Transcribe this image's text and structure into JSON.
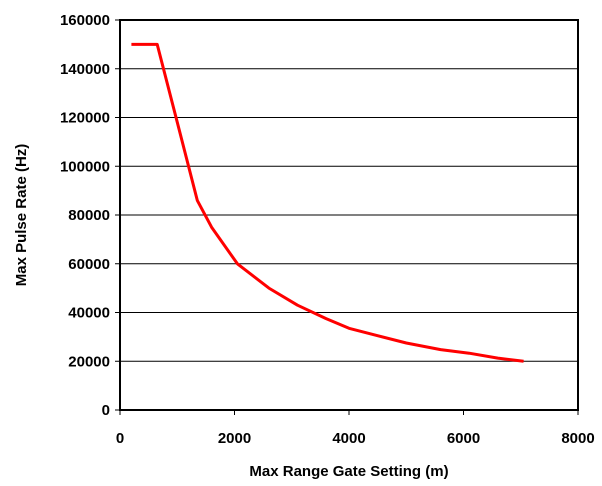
{
  "chart_data": {
    "type": "line",
    "title": "",
    "xlabel": "Max Range Gate Setting (m)",
    "ylabel": "Max Pulse Rate (Hz)",
    "xlim": [
      0,
      8000
    ],
    "ylim": [
      0,
      160000
    ],
    "x_ticks": [
      "0",
      "2000",
      "4000",
      "6000",
      "8000"
    ],
    "y_ticks": [
      "0",
      "20000",
      "40000",
      "60000",
      "80000",
      "100000",
      "120000",
      "140000",
      "160000"
    ],
    "grid": "horizontal",
    "legend": "none",
    "series": [
      {
        "color": "#ff0000",
        "x": [
          200,
          650,
          1000,
          1350,
          1600,
          2050,
          2600,
          3100,
          3600,
          4000,
          4500,
          5000,
          5600,
          6100,
          6600,
          7050
        ],
        "y": [
          150000,
          150000,
          118000,
          86000,
          75000,
          60000,
          50000,
          43000,
          37500,
          33500,
          30500,
          27500,
          24800,
          23300,
          21300,
          20000
        ]
      }
    ]
  }
}
